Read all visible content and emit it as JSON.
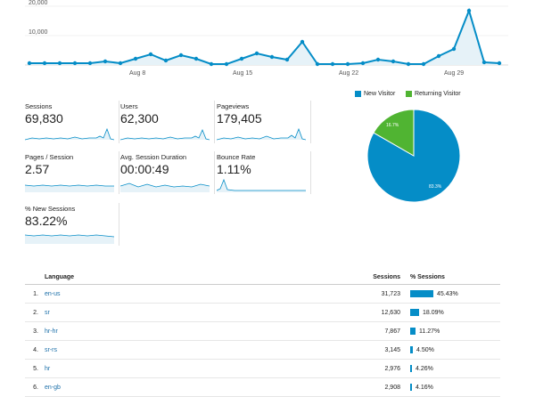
{
  "top_chart": {
    "y_ticks": [
      "20,000",
      "10,000"
    ],
    "x_ticks": [
      "Aug 8",
      "Aug 15",
      "Aug 22",
      "Aug 29"
    ],
    "color": "#058dc7"
  },
  "metrics": [
    {
      "label": "Sessions",
      "value": "69,830"
    },
    {
      "label": "Users",
      "value": "62,300"
    },
    {
      "label": "Pageviews",
      "value": "179,405"
    },
    {
      "label": "Pages / Session",
      "value": "2.57"
    },
    {
      "label": "Avg. Session Duration",
      "value": "00:00:49"
    },
    {
      "label": "Bounce Rate",
      "value": "1.11%"
    },
    {
      "label": "% New Sessions",
      "value": "83.22%"
    }
  ],
  "legend": {
    "new_visitor": "New Visitor",
    "returning_visitor": "Returning Visitor",
    "new_color": "#058dc7",
    "returning_color": "#50b432"
  },
  "pie": {
    "new_pct": 83.3,
    "returning_pct": 16.7,
    "new_label": "83.3%",
    "returning_label": "16.7%"
  },
  "table": {
    "headers": {
      "language": "Language",
      "sessions": "Sessions",
      "pct_sessions": "% Sessions"
    },
    "rows": [
      {
        "num": "1.",
        "language": "en-us",
        "sessions": "31,723",
        "pct": "45.43%",
        "pct_value": 45.43
      },
      {
        "num": "2.",
        "language": "sr",
        "sessions": "12,630",
        "pct": "18.09%",
        "pct_value": 18.09
      },
      {
        "num": "3.",
        "language": "hr-hr",
        "sessions": "7,867",
        "pct": "11.27%",
        "pct_value": 11.27
      },
      {
        "num": "4.",
        "language": "sr-rs",
        "sessions": "3,145",
        "pct": "4.50%",
        "pct_value": 4.5
      },
      {
        "num": "5.",
        "language": "hr",
        "sessions": "2,976",
        "pct": "4.26%",
        "pct_value": 4.26
      },
      {
        "num": "6.",
        "language": "en-gb",
        "sessions": "2,908",
        "pct": "4.16%",
        "pct_value": 4.16
      }
    ]
  }
}
